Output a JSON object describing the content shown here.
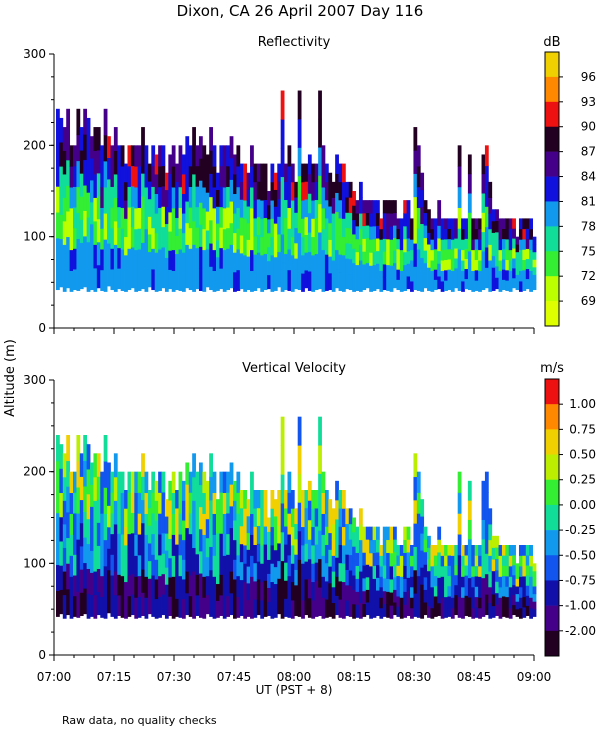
{
  "page": {
    "title": "Dixon, CA 26 April 2007  Day 116",
    "y_label": "Altitude (m)",
    "x_label": "UT  (PST + 8)",
    "footnote": "Raw data, no quality checks"
  },
  "chart_data": [
    {
      "type": "heatmap",
      "title": "Reflectivity",
      "ylim": [
        0,
        300
      ],
      "y_ticks": [
        "0",
        "100",
        "200",
        "300"
      ],
      "x_ticks": [
        "07:00",
        "07:15",
        "07:30",
        "07:45",
        "08:00",
        "08:15",
        "08:30",
        "08:45",
        "09:00"
      ],
      "x_range_ut": [
        "07:00",
        "09:00"
      ],
      "data_bottom_m": 40,
      "colorbar": {
        "units": "dB",
        "labels": [
          "96",
          "93",
          "90",
          "87",
          "84",
          "81",
          "78",
          "75",
          "72",
          "69"
        ],
        "colors": [
          "#f0d000",
          "#ff8800",
          "#ee1111",
          "#220022",
          "#440088",
          "#1111dd",
          "#1199ee",
          "#11dd99",
          "#33ee33",
          "#bbff00",
          "#ddff00"
        ]
      },
      "top_profile_m": [
        240,
        230,
        220,
        240,
        200,
        200,
        240,
        220,
        240,
        230,
        210,
        220,
        220,
        200,
        240,
        210,
        200,
        220,
        200,
        200,
        180,
        200,
        200,
        200,
        200,
        220,
        200,
        180,
        200,
        190,
        200,
        200,
        170,
        190,
        200,
        180,
        200,
        190,
        210,
        200,
        220,
        200,
        210,
        200,
        190,
        220,
        200,
        170,
        200,
        200,
        200,
        210,
        190,
        200,
        180,
        180,
        170,
        200,
        180,
        180,
        180,
        180,
        150,
        180,
        170,
        180,
        260,
        180,
        200,
        180,
        160,
        260,
        180,
        180,
        190,
        180,
        180,
        260,
        200,
        180,
        170,
        160,
        190,
        180,
        180,
        160,
        160,
        150,
        140,
        160,
        140,
        140,
        140,
        140,
        140,
        120,
        140,
        140,
        140,
        140,
        120,
        120,
        140,
        140,
        120,
        220,
        200,
        170,
        140,
        130,
        120,
        120,
        140,
        120,
        120,
        120,
        120,
        120,
        200,
        120,
        120,
        190,
        120,
        120,
        120,
        190,
        200,
        160,
        130,
        130,
        120,
        120,
        120,
        120,
        120,
        100,
        120,
        120,
        120,
        120,
        100
      ],
      "bottom_profile_m": [
        42,
        45,
        40,
        44,
        40,
        42,
        41,
        43,
        45,
        40,
        42,
        40,
        44,
        41,
        40,
        46,
        42,
        40,
        43,
        41,
        40,
        42,
        44,
        40,
        41,
        43,
        40,
        45,
        42,
        40,
        41,
        44,
        40,
        43,
        40,
        42,
        41,
        40,
        44,
        42,
        40,
        43,
        41,
        40,
        45,
        42,
        40,
        41,
        43,
        40,
        42,
        44,
        40,
        41,
        43,
        40,
        42,
        40,
        41,
        44,
        40,
        42,
        43,
        40,
        41,
        45,
        40,
        42,
        41,
        40,
        43,
        42,
        40,
        44,
        41,
        40,
        42,
        43,
        40,
        41,
        42,
        40,
        44,
        41,
        40,
        43,
        42,
        40,
        41,
        40,
        42,
        44,
        40,
        41,
        43,
        40,
        42,
        41,
        40,
        44,
        42,
        40,
        41,
        43,
        40,
        42,
        41,
        40,
        44,
        41,
        40,
        42,
        43,
        40,
        41,
        42,
        40,
        44,
        41,
        40,
        43,
        42,
        40,
        41,
        40,
        42,
        44,
        40,
        41,
        43,
        40,
        42,
        41,
        40,
        44,
        42,
        40,
        41,
        43,
        40,
        42
      ]
    },
    {
      "type": "heatmap",
      "title": "Vertical Velocity",
      "ylim": [
        0,
        300
      ],
      "y_ticks": [
        "0",
        "100",
        "200",
        "300"
      ],
      "x_ticks": [
        "07:00",
        "07:15",
        "07:30",
        "07:45",
        "08:00",
        "08:15",
        "08:30",
        "08:45",
        "09:00"
      ],
      "x_range_ut": [
        "07:00",
        "09:00"
      ],
      "data_bottom_m": 40,
      "colorbar": {
        "units": "m/s",
        "labels": [
          "1.00",
          "0.75",
          "0.50",
          "0.25",
          "0.00",
          "-0.25",
          "-0.50",
          "-0.75",
          "-1.00",
          "-2.00"
        ],
        "colors": [
          "#ee1111",
          "#ff8800",
          "#f0d000",
          "#bbee00",
          "#33ee33",
          "#11dd99",
          "#1199ee",
          "#1155ee",
          "#1111aa",
          "#440088",
          "#220022"
        ]
      },
      "top_profile_m": [
        240,
        230,
        220,
        240,
        200,
        200,
        240,
        220,
        240,
        230,
        210,
        220,
        220,
        200,
        240,
        210,
        200,
        220,
        200,
        200,
        180,
        200,
        200,
        200,
        200,
        220,
        200,
        180,
        200,
        190,
        200,
        200,
        170,
        190,
        200,
        180,
        200,
        190,
        210,
        200,
        220,
        200,
        210,
        200,
        190,
        220,
        200,
        170,
        200,
        200,
        200,
        210,
        190,
        200,
        180,
        180,
        170,
        200,
        180,
        180,
        180,
        180,
        150,
        180,
        170,
        180,
        260,
        180,
        200,
        180,
        160,
        260,
        180,
        180,
        190,
        180,
        180,
        260,
        200,
        180,
        170,
        160,
        190,
        180,
        180,
        160,
        160,
        150,
        140,
        160,
        140,
        140,
        140,
        140,
        140,
        120,
        140,
        140,
        140,
        140,
        120,
        120,
        140,
        140,
        120,
        220,
        200,
        170,
        140,
        130,
        120,
        120,
        140,
        120,
        120,
        120,
        120,
        120,
        200,
        120,
        120,
        190,
        120,
        120,
        120,
        190,
        200,
        160,
        130,
        130,
        120,
        120,
        120,
        120,
        120,
        100,
        120,
        120,
        120,
        120,
        100
      ],
      "bottom_profile_m": [
        42,
        45,
        40,
        44,
        40,
        42,
        41,
        43,
        45,
        40,
        42,
        40,
        44,
        41,
        40,
        46,
        42,
        40,
        43,
        41,
        40,
        42,
        44,
        40,
        41,
        43,
        40,
        45,
        42,
        40,
        41,
        44,
        40,
        43,
        40,
        42,
        41,
        40,
        44,
        42,
        40,
        43,
        41,
        40,
        45,
        42,
        40,
        41,
        43,
        40,
        42,
        44,
        40,
        41,
        43,
        40,
        42,
        40,
        41,
        44,
        40,
        42,
        43,
        40,
        41,
        45,
        40,
        42,
        41,
        40,
        43,
        42,
        40,
        44,
        41,
        40,
        42,
        43,
        40,
        41,
        42,
        40,
        44,
        41,
        40,
        43,
        42,
        40,
        41,
        40,
        42,
        44,
        40,
        41,
        43,
        40,
        42,
        41,
        40,
        44,
        42,
        40,
        41,
        43,
        40,
        42,
        41,
        40,
        44,
        41,
        40,
        42,
        43,
        40,
        41,
        42,
        40,
        44,
        41,
        40,
        43,
        42,
        40,
        41,
        40,
        42,
        44,
        40,
        41,
        43,
        40,
        42,
        41,
        40,
        44,
        42,
        40,
        41,
        43,
        40,
        42
      ]
    }
  ]
}
